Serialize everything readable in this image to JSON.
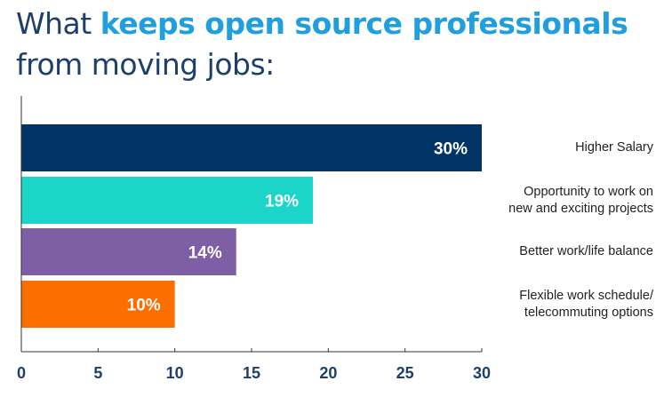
{
  "title": {
    "part1": "What ",
    "part2": "keeps open source professionals",
    "part3": "from moving jobs:"
  },
  "colors": {
    "title": "#1d3f6b",
    "title_highlight": "#1f9fdd",
    "axis": "#333333"
  },
  "chart_data": {
    "type": "bar",
    "orientation": "horizontal",
    "categories": [
      "Higher Salary",
      "Opportunity to work on new and exciting projects",
      "Better work/life balance",
      "Flexible work schedule/ telecommuting options"
    ],
    "category_lines": [
      [
        "Higher Salary"
      ],
      [
        "Opportunity to work on",
        "new and exciting projects"
      ],
      [
        "Better work/life balance"
      ],
      [
        "Flexible work schedule/",
        "telecommuting options"
      ]
    ],
    "values": [
      30,
      19,
      14,
      10
    ],
    "value_labels": [
      "30%",
      "19%",
      "14%",
      "10%"
    ],
    "bar_colors": [
      "#003366",
      "#1bd6c8",
      "#7e5ea4",
      "#fc6e00"
    ],
    "xlim": [
      0,
      30
    ],
    "xticks": [
      0,
      5,
      10,
      15,
      20,
      25,
      30
    ],
    "xlabel": "",
    "ylabel": "",
    "grid": false,
    "legend": "none"
  }
}
